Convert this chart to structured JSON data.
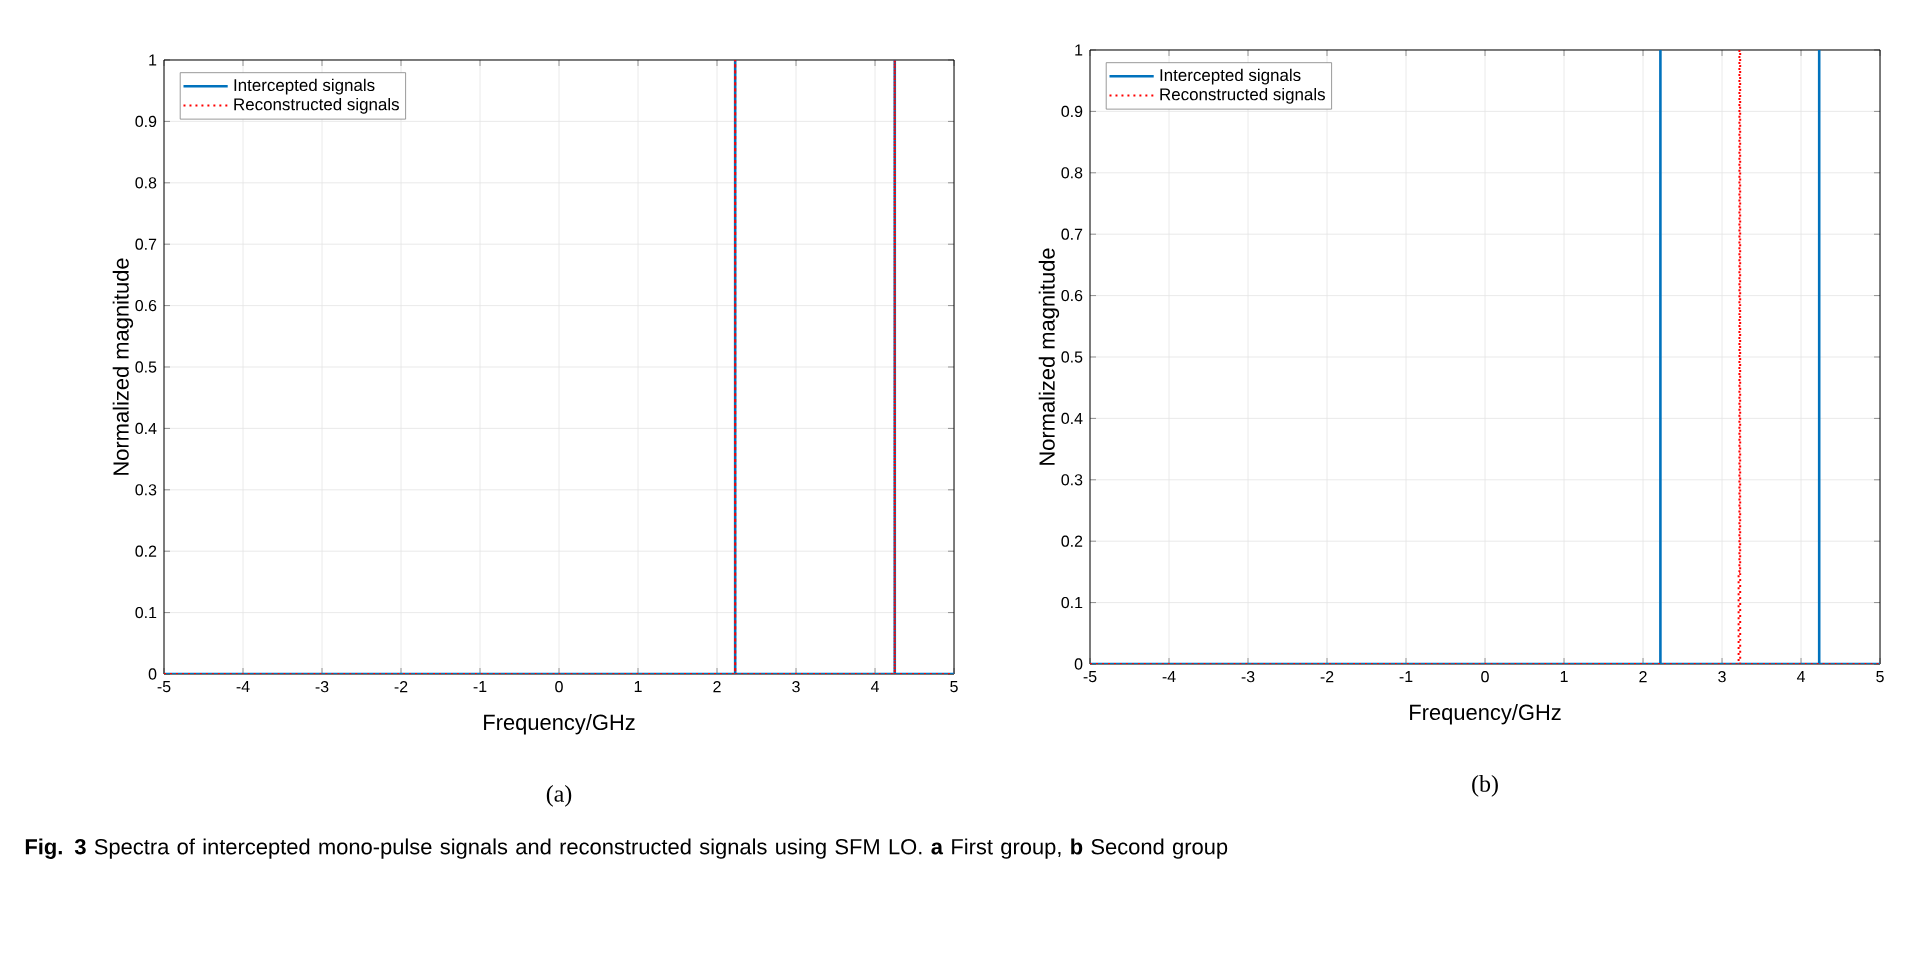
{
  "chart_data": [
    {
      "type": "line",
      "xlabel": "Frequency/GHz",
      "ylabel": "Normalized magnitude",
      "xlim": [
        -5,
        5
      ],
      "ylim": [
        0,
        1
      ],
      "xticks": [
        -5,
        -4,
        -3,
        -2,
        -1,
        0,
        1,
        2,
        3,
        4,
        5
      ],
      "yticks": [
        0,
        0.1,
        0.2,
        0.3,
        0.4,
        0.5,
        0.6,
        0.7,
        0.8,
        0.9,
        1
      ],
      "grid": true,
      "legend": "top left",
      "series": [
        {
          "name": "Intercepted signals",
          "color": "#0072bd",
          "line_style": "solid",
          "x": [
            -5,
            2.23,
            2.23,
            2.23,
            4.25,
            4.25,
            4.25,
            5
          ],
          "values": [
            0,
            0,
            1,
            0,
            0,
            1,
            0,
            0
          ]
        },
        {
          "name": "Reconstructed signals",
          "color": "#ff0000",
          "line_style": "dotted",
          "x": [
            -5,
            2.23,
            2.23,
            2.23,
            4.25,
            4.25,
            4.25,
            5
          ],
          "values": [
            0,
            0,
            1,
            0,
            0,
            1,
            0,
            0
          ]
        }
      ],
      "annotations": [
        "(a)"
      ]
    },
    {
      "type": "line",
      "xlabel": "Frequency/GHz",
      "ylabel": "Normalized magnitude",
      "xlim": [
        -5,
        5
      ],
      "ylim": [
        0,
        1
      ],
      "xticks": [
        -5,
        -4,
        -3,
        -2,
        -1,
        0,
        1,
        2,
        3,
        4,
        5
      ],
      "yticks": [
        0,
        0.1,
        0.2,
        0.3,
        0.4,
        0.5,
        0.6,
        0.7,
        0.8,
        0.9,
        1
      ],
      "grid": true,
      "legend": "top left",
      "series": [
        {
          "name": "Intercepted signals",
          "color": "#0072bd",
          "line_style": "solid",
          "x": [
            -5,
            2.22,
            2.22,
            2.22,
            4.23,
            4.23,
            4.23,
            5
          ],
          "values": [
            0,
            0,
            1,
            0,
            0,
            1,
            0,
            0
          ]
        },
        {
          "name": "Reconstructed signals",
          "color": "#ff0000",
          "line_style": "dotted",
          "x": [
            -5,
            3.21,
            3.21,
            3.22,
            3.22,
            3.23,
            3.23,
            5
          ],
          "values": [
            0,
            0,
            0.15,
            0.15,
            1,
            1,
            0,
            0
          ]
        }
      ],
      "annotations": [
        "(b)",
        "**Fig. 3** Spectra of intercepted mono-pulse signals and reconstructed signals using SFM LO. **a** First group, **b** Second group"
      ]
    }
  ]
}
